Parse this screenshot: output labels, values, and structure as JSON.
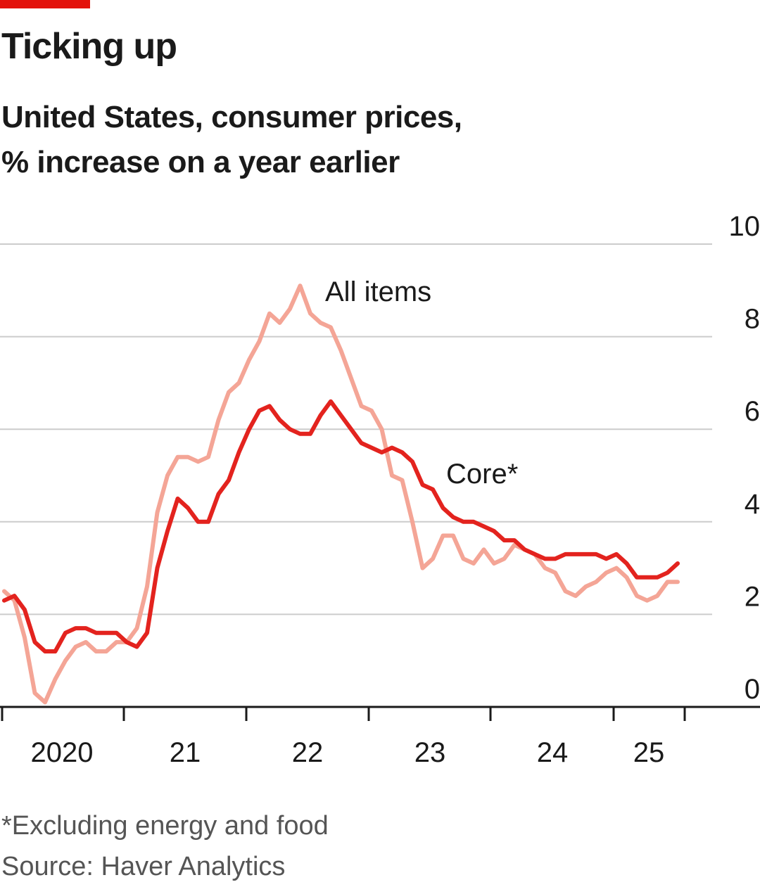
{
  "title": "Ticking up",
  "subtitle": {
    "line1": "United States, consumer prices,",
    "line2": "% increase on a year earlier"
  },
  "footnote": "*Excluding energy and food",
  "source": "Source: Haver Analytics",
  "colors": {
    "accent": "#e3120b",
    "core": "#e3231e",
    "all_items": "#f4a596",
    "grid": "#cccccc",
    "axis": "#1a1a1a"
  },
  "chart_data": {
    "type": "line",
    "title": "Ticking up",
    "subtitle": "United States, consumer prices, % increase on a year earlier",
    "xlabel": "",
    "ylabel": "%",
    "ylim": [
      0,
      10
    ],
    "yticks": [
      0,
      2,
      4,
      6,
      8,
      10
    ],
    "xlim": [
      2020.0,
      2025.917
    ],
    "x_tick_marks": [
      2020,
      2021,
      2022,
      2023,
      2024,
      2025,
      2026
    ],
    "x_tick_labels": [
      {
        "label": "2020",
        "x": 2020.5
      },
      {
        "label": "21",
        "x": 2021.5
      },
      {
        "label": "22",
        "x": 2022.5
      },
      {
        "label": "23",
        "x": 2023.5
      },
      {
        "label": "24",
        "x": 2024.5
      },
      {
        "label": "25",
        "x": 2025.3
      }
    ],
    "grid": true,
    "start": "2020-01",
    "series": [
      {
        "name": "All items",
        "label": "All items",
        "values": [
          2.5,
          2.3,
          1.5,
          0.3,
          0.1,
          0.6,
          1.0,
          1.3,
          1.4,
          1.2,
          1.2,
          1.4,
          1.4,
          1.7,
          2.6,
          4.2,
          5.0,
          5.4,
          5.4,
          5.3,
          5.4,
          6.2,
          6.8,
          7.0,
          7.5,
          7.9,
          8.5,
          8.3,
          8.6,
          9.1,
          8.5,
          8.3,
          8.2,
          7.7,
          7.1,
          6.5,
          6.4,
          6.0,
          5.0,
          4.9,
          4.0,
          3.0,
          3.2,
          3.7,
          3.7,
          3.2,
          3.1,
          3.4,
          3.1,
          3.2,
          3.5,
          3.4,
          3.3,
          3.0,
          2.9,
          2.5,
          2.4,
          2.6,
          2.7,
          2.9,
          3.0,
          2.8,
          2.4,
          2.3,
          2.4,
          2.7,
          2.7
        ]
      },
      {
        "name": "Core*",
        "label": "Core*",
        "values": [
          2.3,
          2.4,
          2.1,
          1.4,
          1.2,
          1.2,
          1.6,
          1.7,
          1.7,
          1.6,
          1.6,
          1.6,
          1.4,
          1.3,
          1.6,
          3.0,
          3.8,
          4.5,
          4.3,
          4.0,
          4.0,
          4.6,
          4.9,
          5.5,
          6.0,
          6.4,
          6.5,
          6.2,
          6.0,
          5.9,
          5.9,
          6.3,
          6.6,
          6.3,
          6.0,
          5.7,
          5.6,
          5.5,
          5.6,
          5.5,
          5.3,
          4.8,
          4.7,
          4.3,
          4.1,
          4.0,
          4.0,
          3.9,
          3.8,
          3.6,
          3.6,
          3.4,
          3.3,
          3.2,
          3.2,
          3.3,
          3.3,
          3.3,
          3.3,
          3.2,
          3.3,
          3.1,
          2.8,
          2.8,
          2.8,
          2.9,
          3.1
        ]
      }
    ],
    "annotations": [
      "All items",
      "Core*"
    ]
  }
}
